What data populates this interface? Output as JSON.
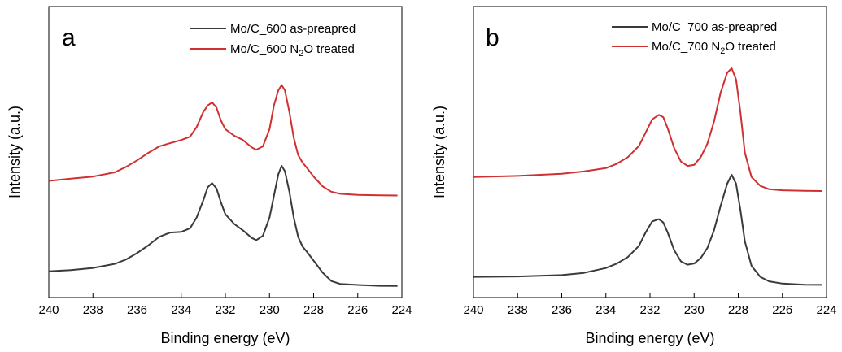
{
  "chart_data": [
    {
      "type": "line",
      "panel_label": "a",
      "xlabel": "Binding energy (eV)",
      "ylabel": "Intensity (a.u.)",
      "xlim": [
        240,
        224
      ],
      "ylim": [
        0,
        1
      ],
      "x_reversed": true,
      "x_ticks": [
        240,
        238,
        236,
        234,
        232,
        230,
        228,
        226,
        224
      ],
      "y_ticks_shown": false,
      "grid": false,
      "legend_position": "top-right",
      "series": [
        {
          "name": "Mo/C_600 as-preapred",
          "color": "#3a3a3a",
          "x": [
            240,
            239,
            238,
            237,
            236.5,
            236,
            235.5,
            235,
            234.5,
            234,
            233.6,
            233.3,
            233.0,
            232.8,
            232.6,
            232.4,
            232.2,
            232.0,
            231.6,
            231.2,
            230.8,
            230.6,
            230.3,
            230.0,
            229.8,
            229.6,
            229.45,
            229.3,
            229.1,
            228.9,
            228.7,
            228.5,
            228.3,
            228.0,
            227.6,
            227.2,
            226.8,
            226.0,
            225.0,
            224.2
          ],
          "y": [
            0.08,
            0.086,
            0.096,
            0.115,
            0.135,
            0.165,
            0.2,
            0.24,
            0.26,
            0.263,
            0.28,
            0.33,
            0.41,
            0.47,
            0.49,
            0.465,
            0.4,
            0.345,
            0.3,
            0.27,
            0.235,
            0.225,
            0.245,
            0.33,
            0.43,
            0.53,
            0.57,
            0.545,
            0.45,
            0.33,
            0.24,
            0.195,
            0.17,
            0.13,
            0.075,
            0.035,
            0.022,
            0.017,
            0.013,
            0.012
          ]
        },
        {
          "name": "Mo/C_600 N2O treated",
          "color": "#d03030",
          "x": [
            240,
            239,
            238,
            237,
            236.5,
            236,
            235.5,
            235,
            234.5,
            234,
            233.6,
            233.3,
            233.0,
            232.8,
            232.6,
            232.4,
            232.2,
            232.0,
            231.6,
            231.2,
            230.8,
            230.6,
            230.3,
            230.0,
            229.8,
            229.6,
            229.45,
            229.3,
            229.1,
            228.9,
            228.7,
            228.5,
            228.3,
            228.0,
            227.6,
            227.2,
            226.8,
            226.0,
            225.0,
            224.2
          ],
          "y": [
            0.5,
            0.51,
            0.52,
            0.54,
            0.565,
            0.595,
            0.63,
            0.66,
            0.675,
            0.69,
            0.705,
            0.75,
            0.82,
            0.85,
            0.865,
            0.84,
            0.78,
            0.74,
            0.71,
            0.69,
            0.655,
            0.645,
            0.66,
            0.74,
            0.85,
            0.92,
            0.945,
            0.92,
            0.82,
            0.7,
            0.62,
            0.585,
            0.56,
            0.52,
            0.475,
            0.45,
            0.44,
            0.435,
            0.433,
            0.432
          ]
        }
      ]
    },
    {
      "type": "line",
      "panel_label": "b",
      "xlabel": "Binding energy (eV)",
      "ylabel": "Intensity (a.u.)",
      "xlim": [
        240,
        224
      ],
      "ylim": [
        0,
        1
      ],
      "x_reversed": true,
      "x_ticks": [
        240,
        238,
        236,
        234,
        232,
        230,
        228,
        226,
        224
      ],
      "y_ticks_shown": false,
      "grid": false,
      "legend_position": "top-right",
      "series": [
        {
          "name": "Mo/C_700 as-preapred",
          "color": "#3a3a3a",
          "x": [
            240,
            238,
            236,
            235,
            234,
            233.5,
            233,
            232.5,
            232.2,
            231.9,
            231.6,
            231.4,
            231.2,
            230.9,
            230.6,
            230.3,
            230.0,
            229.7,
            229.4,
            229.1,
            228.8,
            228.5,
            228.3,
            228.1,
            227.9,
            227.7,
            227.4,
            227.0,
            226.6,
            226.0,
            225.0,
            224.2
          ],
          "y": [
            0.06,
            0.062,
            0.068,
            0.078,
            0.1,
            0.12,
            0.15,
            0.2,
            0.26,
            0.31,
            0.32,
            0.305,
            0.26,
            0.18,
            0.13,
            0.115,
            0.12,
            0.145,
            0.19,
            0.27,
            0.38,
            0.48,
            0.52,
            0.48,
            0.36,
            0.22,
            0.11,
            0.06,
            0.04,
            0.03,
            0.025,
            0.024
          ]
        },
        {
          "name": "Mo/C_700 N2O treated",
          "color": "#d03030",
          "x": [
            240,
            238,
            236,
            235,
            234,
            233.5,
            233,
            232.5,
            232.2,
            231.9,
            231.6,
            231.4,
            231.2,
            230.9,
            230.6,
            230.3,
            230.0,
            229.7,
            229.4,
            229.1,
            228.8,
            228.5,
            228.3,
            228.1,
            227.9,
            227.7,
            227.4,
            227.0,
            226.6,
            226.0,
            225.0,
            224.2
          ],
          "y": [
            0.51,
            0.515,
            0.525,
            0.535,
            0.55,
            0.57,
            0.6,
            0.65,
            0.71,
            0.77,
            0.79,
            0.78,
            0.73,
            0.64,
            0.58,
            0.56,
            0.565,
            0.6,
            0.66,
            0.76,
            0.89,
            0.98,
            1.0,
            0.95,
            0.8,
            0.62,
            0.51,
            0.47,
            0.455,
            0.45,
            0.448,
            0.447
          ]
        }
      ]
    }
  ]
}
